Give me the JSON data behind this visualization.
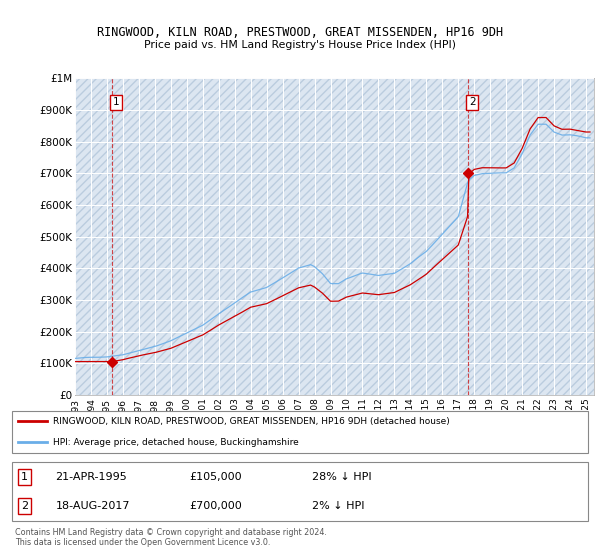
{
  "title1": "RINGWOOD, KILN ROAD, PRESTWOOD, GREAT MISSENDEN, HP16 9DH",
  "title2": "Price paid vs. HM Land Registry's House Price Index (HPI)",
  "ylim": [
    0,
    1000000
  ],
  "yticks": [
    0,
    100000,
    200000,
    300000,
    400000,
    500000,
    600000,
    700000,
    800000,
    900000,
    1000000
  ],
  "ytick_labels": [
    "£0",
    "£100K",
    "£200K",
    "£300K",
    "£400K",
    "£500K",
    "£600K",
    "£700K",
    "£800K",
    "£900K",
    "£1M"
  ],
  "xlim_start": 1993.0,
  "xlim_end": 2025.5,
  "xticks": [
    1993,
    1994,
    1995,
    1996,
    1997,
    1998,
    1999,
    2000,
    2001,
    2002,
    2003,
    2004,
    2005,
    2006,
    2007,
    2008,
    2009,
    2010,
    2011,
    2012,
    2013,
    2014,
    2015,
    2016,
    2017,
    2018,
    2019,
    2020,
    2021,
    2022,
    2023,
    2024,
    2025
  ],
  "sale1_x": 1995.31,
  "sale1_y": 105000,
  "sale2_x": 2017.63,
  "sale2_y": 700000,
  "hpi_color": "#6aaee8",
  "sale_color": "#cc0000",
  "plot_bg": "#dce6f1",
  "grid_color": "#ffffff",
  "legend_label1": "RINGWOOD, KILN ROAD, PRESTWOOD, GREAT MISSENDEN, HP16 9DH (detached house)",
  "legend_label2": "HPI: Average price, detached house, Buckinghamshire",
  "footer": "Contains HM Land Registry data © Crown copyright and database right 2024.\nThis data is licensed under the Open Government Licence v3.0."
}
